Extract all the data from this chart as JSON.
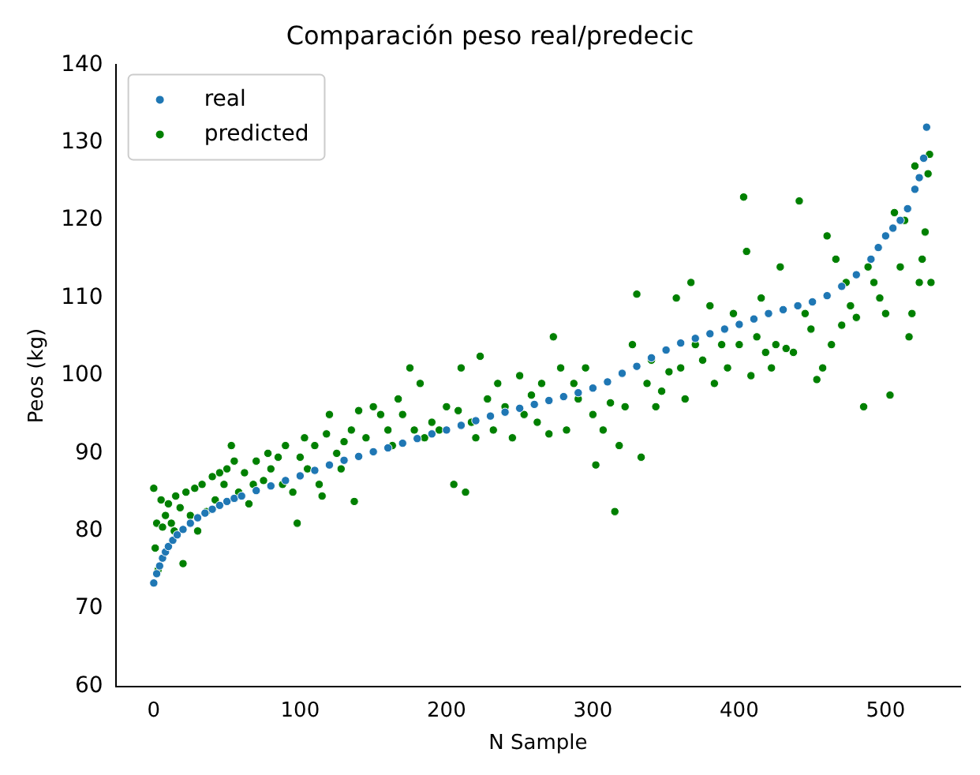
{
  "chart_data": {
    "type": "scatter",
    "title": "Comparación peso real/predecic",
    "xlabel": "N Sample",
    "ylabel": "Peos (kg)",
    "xlim": [
      -26,
      551
    ],
    "xticks": [
      0,
      100,
      200,
      300,
      400,
      500
    ],
    "ylim": [
      60,
      140
    ],
    "yticks": [
      60,
      70,
      80,
      90,
      100,
      110,
      120,
      130,
      140
    ],
    "grid": false,
    "legend": "top left",
    "marker": "circle",
    "series": [
      {
        "name": "real",
        "color": "#1f77b4",
        "x": [
          0,
          2,
          4,
          6,
          8,
          10,
          13,
          16,
          20,
          25,
          30,
          35,
          40,
          45,
          50,
          55,
          60,
          70,
          80,
          90,
          100,
          110,
          120,
          130,
          140,
          150,
          160,
          170,
          180,
          190,
          200,
          210,
          220,
          230,
          240,
          250,
          260,
          270,
          280,
          290,
          300,
          310,
          320,
          330,
          340,
          350,
          360,
          370,
          380,
          390,
          400,
          410,
          420,
          430,
          440,
          450,
          460,
          470,
          480,
          490,
          495,
          500,
          505,
          510,
          515,
          520,
          523,
          526,
          528
        ],
        "values": [
          73.3,
          74.5,
          75.5,
          76.5,
          77.3,
          78,
          78.8,
          79.5,
          80.2,
          81,
          81.7,
          82.3,
          82.8,
          83.3,
          83.8,
          84.2,
          84.5,
          85.2,
          85.8,
          86.5,
          87.1,
          87.8,
          88.5,
          89.1,
          89.6,
          90.2,
          90.7,
          91.3,
          91.9,
          92.5,
          93,
          93.6,
          94.2,
          94.8,
          95.3,
          95.8,
          96.3,
          96.8,
          97.3,
          97.8,
          98.4,
          99.2,
          100.3,
          101.2,
          102.3,
          103.3,
          104.2,
          104.8,
          105.4,
          106,
          106.6,
          107.3,
          108,
          108.5,
          109,
          109.5,
          110.3,
          111.5,
          113,
          115,
          116.5,
          118,
          119,
          120,
          121.5,
          124,
          125.5,
          128,
          132
        ]
      },
      {
        "name": "predicted",
        "color": "#008000",
        "x": [
          0,
          1,
          2,
          3,
          5,
          6,
          8,
          10,
          12,
          14,
          15,
          18,
          20,
          22,
          25,
          28,
          30,
          33,
          36,
          40,
          42,
          45,
          48,
          50,
          53,
          55,
          58,
          62,
          65,
          68,
          70,
          75,
          78,
          80,
          85,
          88,
          90,
          95,
          98,
          100,
          103,
          105,
          110,
          113,
          115,
          118,
          120,
          125,
          128,
          130,
          135,
          137,
          140,
          145,
          150,
          155,
          160,
          163,
          167,
          170,
          175,
          178,
          182,
          185,
          190,
          195,
          200,
          205,
          208,
          210,
          213,
          217,
          220,
          223,
          228,
          232,
          235,
          240,
          245,
          250,
          253,
          258,
          262,
          265,
          270,
          273,
          278,
          282,
          287,
          290,
          295,
          300,
          302,
          307,
          312,
          315,
          318,
          322,
          327,
          330,
          333,
          337,
          340,
          343,
          347,
          352,
          357,
          360,
          363,
          367,
          370,
          375,
          380,
          383,
          388,
          392,
          396,
          400,
          403,
          405,
          408,
          412,
          415,
          418,
          422,
          425,
          428,
          432,
          437,
          441,
          445,
          449,
          453,
          457,
          460,
          463,
          466,
          470,
          473,
          476,
          480,
          485,
          488,
          492,
          496,
          500,
          503,
          506,
          510,
          513,
          516,
          518,
          520,
          523,
          525,
          527,
          529,
          530,
          531
        ],
        "values": [
          85.5,
          77.8,
          81,
          75,
          84,
          80.5,
          82,
          83.5,
          81,
          80,
          84.5,
          83,
          75.8,
          85,
          82,
          85.5,
          80,
          86,
          82.5,
          87,
          84,
          87.5,
          86,
          88,
          91,
          89,
          85,
          87.5,
          83.5,
          86,
          89,
          86.5,
          90,
          88,
          89.5,
          86,
          91,
          85,
          81,
          89.5,
          92,
          88,
          91,
          86,
          84.5,
          92.5,
          95,
          90,
          88,
          91.5,
          93,
          83.8,
          95.5,
          92,
          96,
          95,
          93,
          91,
          97,
          95,
          101,
          93,
          99,
          92,
          94,
          93,
          96,
          86,
          95.5,
          101,
          85,
          94,
          92,
          102.5,
          97,
          93,
          99,
          96,
          92,
          100,
          95,
          97.5,
          94,
          99,
          92.5,
          105,
          101,
          93,
          99,
          97,
          101,
          95,
          88.5,
          93,
          96.5,
          82.5,
          91,
          96,
          104,
          110.5,
          89.5,
          99,
          102,
          96,
          98,
          100.5,
          110,
          101,
          97,
          112,
          104,
          102,
          109,
          99,
          104,
          101,
          108,
          104,
          123,
          116,
          100,
          105,
          110,
          103,
          101,
          104,
          114,
          103.5,
          103,
          122.5,
          108,
          106,
          99.5,
          101,
          118,
          104,
          115,
          106.5,
          112,
          109,
          107.5,
          96,
          114,
          112,
          110,
          108,
          97.5,
          121,
          114,
          120,
          105,
          108,
          127,
          112,
          115,
          118.5,
          126,
          128.5,
          112
        ]
      }
    ]
  }
}
